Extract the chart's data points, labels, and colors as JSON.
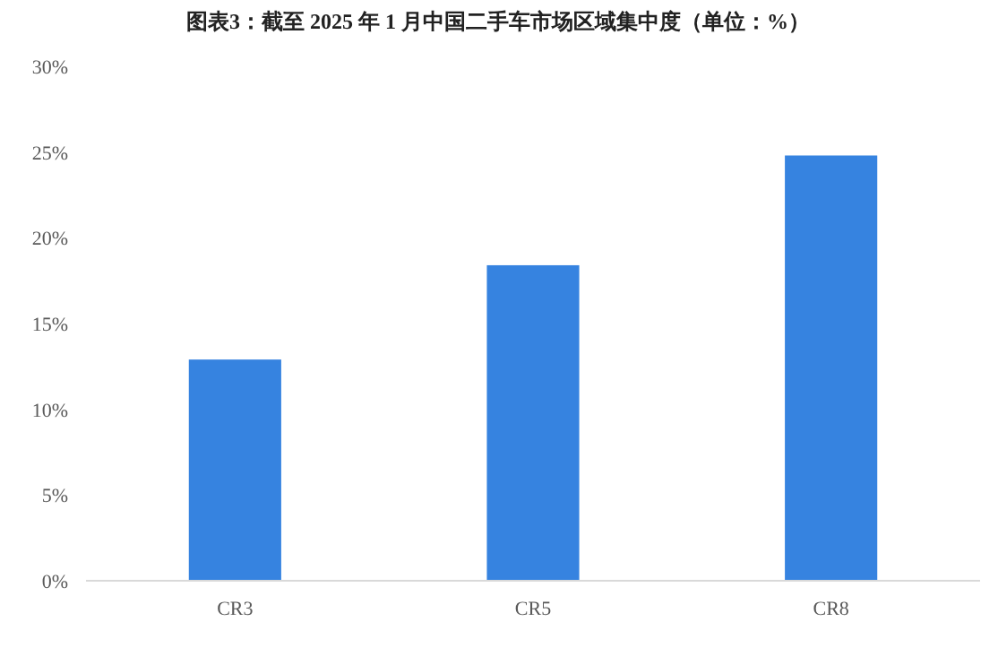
{
  "chart_data": {
    "type": "bar",
    "title": "图表3：截至 2025 年 1 月中国二手车市场区域集中度（单位：%）",
    "categories": [
      "CR3",
      "CR5",
      "CR8"
    ],
    "values": [
      12.9,
      18.4,
      24.8
    ],
    "color": "#3683e0",
    "ylim": [
      0,
      30
    ],
    "yticks": [
      {
        "value": 0,
        "label": "0%"
      },
      {
        "value": 5,
        "label": "5%"
      },
      {
        "value": 10,
        "label": "10%"
      },
      {
        "value": 15,
        "label": "15%"
      },
      {
        "value": 20,
        "label": "20%"
      },
      {
        "value": 25,
        "label": "25%"
      },
      {
        "value": 30,
        "label": "30%"
      }
    ],
    "grid": false
  }
}
